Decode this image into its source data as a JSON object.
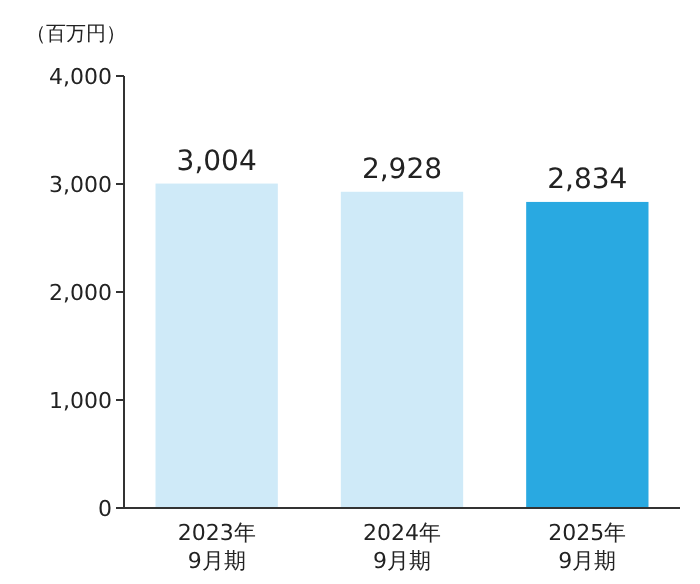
{
  "chart_data": {
    "type": "bar",
    "ylabel": "（百万円）",
    "categories": [
      "2023年\n9月期",
      "2024年\n9月期",
      "2025年\n9月期"
    ],
    "values": [
      3004,
      2928,
      2834
    ],
    "colors": [
      "#cfeaf8",
      "#cfeaf8",
      "#29a9e1"
    ],
    "value_labels": [
      "3,004",
      "2,928",
      "2,834"
    ],
    "ylim": [
      0,
      4000
    ],
    "yticks": [
      {
        "value": 0,
        "label": "0"
      },
      {
        "value": 1000,
        "label": "1,000"
      },
      {
        "value": 2000,
        "label": "2,000"
      },
      {
        "value": 3000,
        "label": "3,000"
      },
      {
        "value": 4000,
        "label": "4,000"
      }
    ],
    "grid": false
  }
}
